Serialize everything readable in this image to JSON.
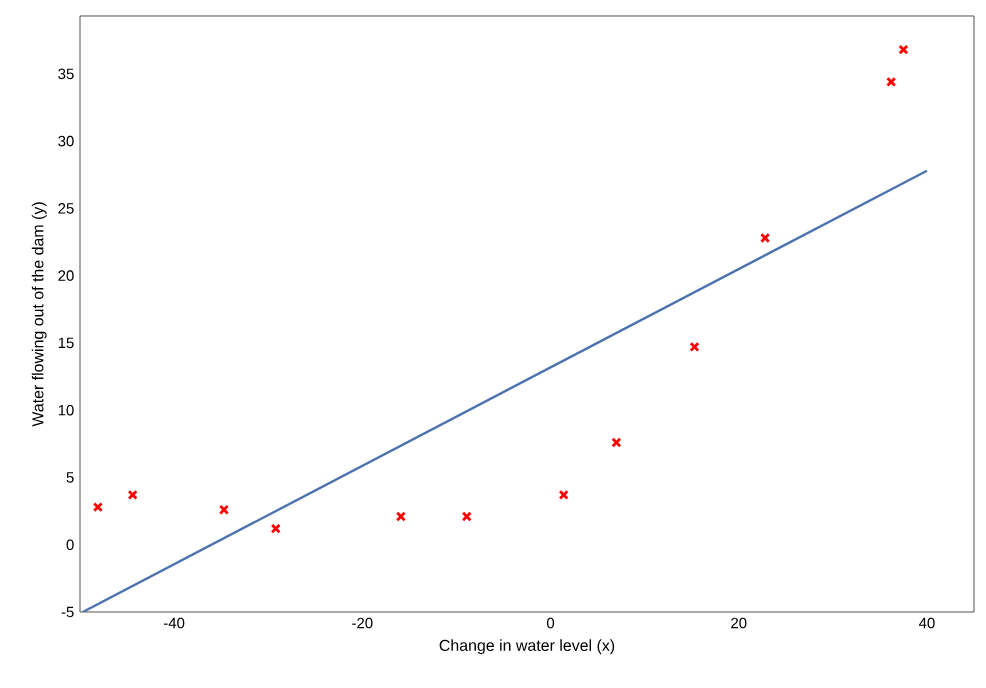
{
  "chart_data": {
    "type": "scatter",
    "xlabel": "Change in water level (x)",
    "ylabel": "Water flowing out of the dam (y)",
    "xlim": [
      -50,
      45
    ],
    "ylim": [
      -5,
      39.3
    ],
    "xticks": [
      -40,
      -20,
      0,
      20,
      40
    ],
    "yticks": [
      -5,
      0,
      5,
      10,
      15,
      20,
      25,
      30,
      35
    ],
    "grid": false,
    "legend": false,
    "marker": "cross",
    "series": [
      {
        "color": "#ff0000",
        "x": [
          -15.9,
          -29.2,
          36.2,
          37.5,
          -48.1,
          -8.9,
          15.3,
          -34.7,
          1.4,
          -44.4,
          7.0,
          22.8
        ],
        "values": [
          2.1,
          1.2,
          34.4,
          36.8,
          2.8,
          2.1,
          14.7,
          2.6,
          3.7,
          3.7,
          7.6,
          22.8
        ]
      },
      {
        "type": "line",
        "color": "#4c72b0",
        "marker": "none",
        "x": [
          -49.7,
          40
        ],
        "values": [
          -5.0,
          27.8
        ]
      }
    ]
  }
}
